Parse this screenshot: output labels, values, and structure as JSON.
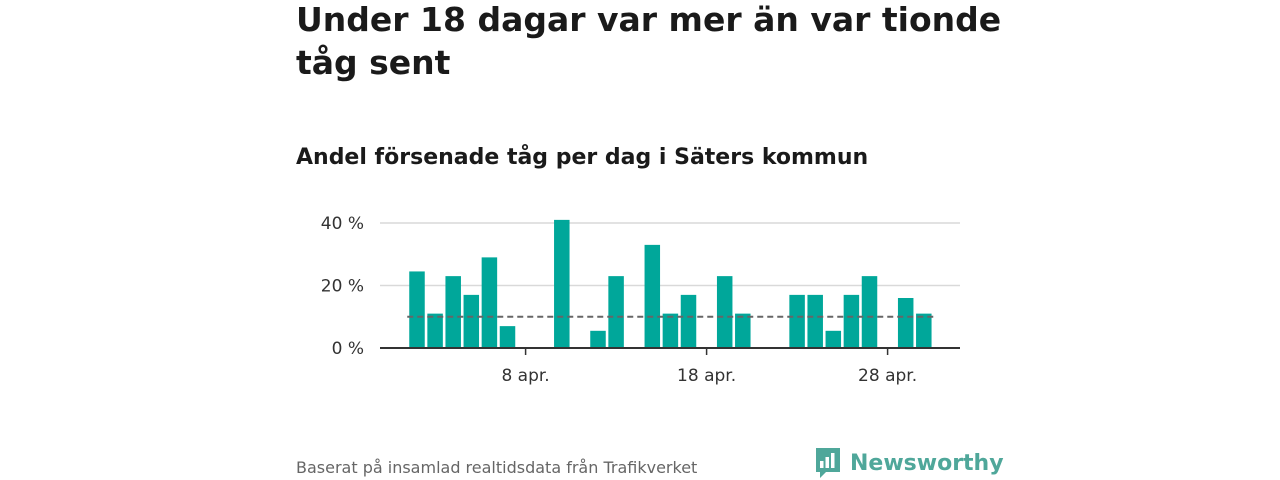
{
  "header": {
    "title": "Under 18 dagar var mer än var tionde tåg sent",
    "subtitle": "Andel försenade tåg per dag i Säters kommun"
  },
  "footer": {
    "source": "Baserat på insamlad realtidsdata från Trafikverket",
    "brand": "Newsworthy",
    "brand_icon": "newsworthy-logo-icon"
  },
  "colors": {
    "bar": "#00a79a",
    "grid": "#d9d9d9",
    "axis": "#333333",
    "reference_line": "#666666",
    "brand": "#4fa79a"
  },
  "chart_data": {
    "type": "bar",
    "title": "Andel försenade tåg per dag i Säters kommun",
    "xlabel": "",
    "ylabel": "",
    "x_unit": "day of April",
    "days": [
      2,
      3,
      4,
      5,
      6,
      7,
      8,
      9,
      10,
      11,
      12,
      13,
      14,
      15,
      16,
      17,
      18,
      19,
      20,
      21,
      22,
      23,
      24,
      25,
      26,
      27,
      28,
      29
    ],
    "values": [
      24.5,
      11,
      23,
      17,
      29,
      7,
      0,
      0,
      41,
      0,
      5.5,
      23,
      0,
      33,
      11,
      17,
      0,
      23,
      11,
      0,
      0,
      17,
      17,
      5.5,
      17,
      23,
      0,
      16
    ],
    "values_extra": {
      "30": 11
    },
    "x_ticks": [
      {
        "day": 8,
        "label": "8 apr."
      },
      {
        "day": 18,
        "label": "18 apr."
      },
      {
        "day": 28,
        "label": "28 apr."
      }
    ],
    "y_ticks": [
      {
        "value": 0,
        "label": "0 %"
      },
      {
        "value": 20,
        "label": "20 %"
      },
      {
        "value": 40,
        "label": "40 %"
      }
    ],
    "ylim": [
      0,
      40
    ],
    "reference_line": {
      "value": 10,
      "style": "dashed"
    },
    "grid": true,
    "legend": "none"
  }
}
